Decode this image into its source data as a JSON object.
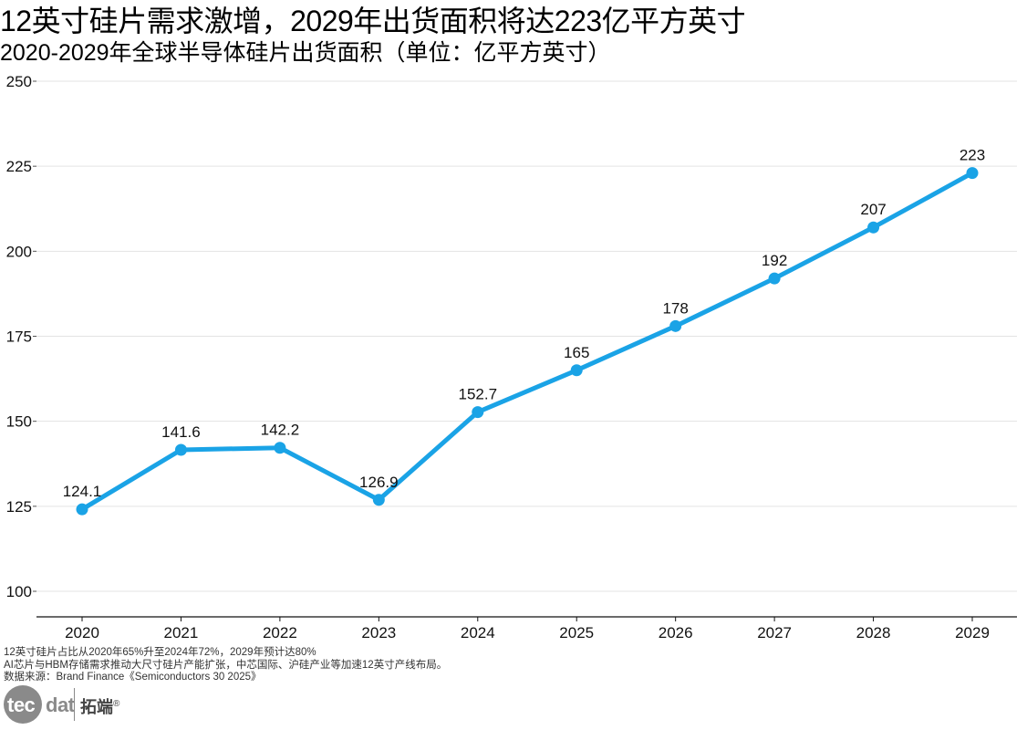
{
  "header": {
    "title": "12英寸硅片需求激增，2029年出货面积将达223亿平方英寸",
    "subtitle": "2020-2029年全球半导体硅片出货面积（单位：亿平方英寸）"
  },
  "chart_data": {
    "type": "line",
    "categories": [
      "2020",
      "2021",
      "2022",
      "2023",
      "2024",
      "2025",
      "2026",
      "2027",
      "2028",
      "2029"
    ],
    "series": [
      {
        "values": [
          124.1,
          141.6,
          142.2,
          126.9,
          152.7,
          165,
          178,
          192,
          207,
          223
        ]
      }
    ],
    "data_labels": [
      "124.1",
      "141.6",
      "142.2",
      "126.9",
      "152.7",
      "165",
      "178",
      "192",
      "207",
      "223"
    ],
    "y_ticks": [
      100,
      125,
      150,
      175,
      200,
      225,
      250
    ],
    "ylim": [
      100,
      250
    ],
    "grid": "horizontal",
    "line_color": "#1aa3e6"
  },
  "notes": [
    "12英寸硅片占比从2020年65%升至2024年72%，2029年预计达80%",
    "AI芯片与HBM存储需求推动大尺寸硅片产能扩张，中芯国际、沪硅产业等加速12英寸产线布局。",
    "数据来源：Brand Finance《Semiconductors 30 2025》"
  ],
  "logo": {
    "word_part1": "tec",
    "word_part2": "dat",
    "name_cn": "拓端",
    "mark": "®"
  }
}
